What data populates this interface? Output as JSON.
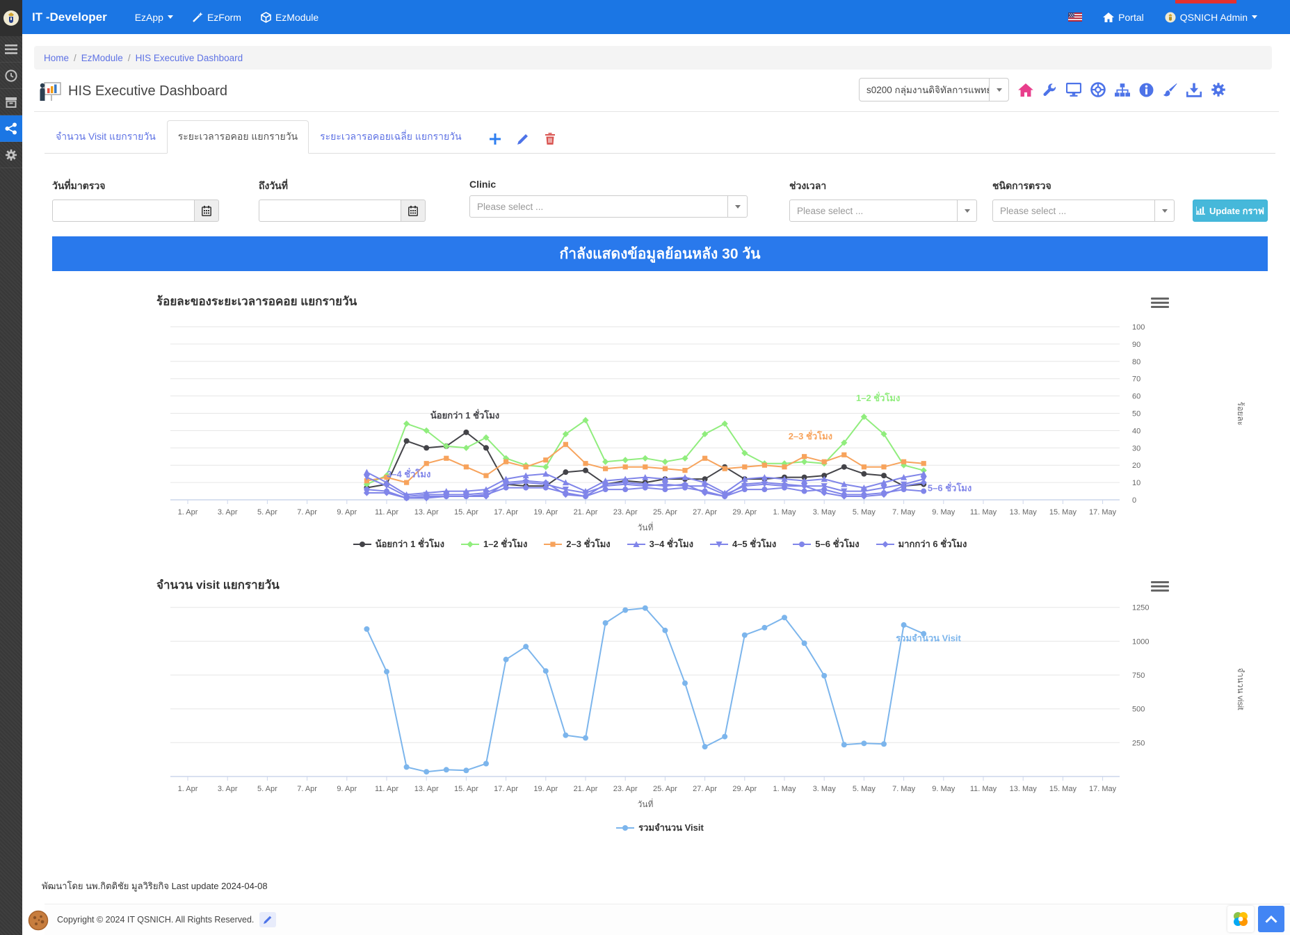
{
  "navbar": {
    "brand": "IT -Developer",
    "items": [
      {
        "label": "EzApp"
      },
      {
        "label": "EzForm"
      },
      {
        "label": "EzModule"
      }
    ],
    "portal_label": "Portal",
    "user_label": "QSNICH Admin"
  },
  "breadcrumb": {
    "items": [
      "Home",
      "EzModule",
      "HIS Executive Dashboard"
    ]
  },
  "page": {
    "title": "HIS Executive Dashboard",
    "unit_select_value": "s0200 กลุ่มงานดิจิทัลการแพทย์"
  },
  "tabs": {
    "tab1": "จำนวน Visit แยกรายวัน",
    "tab2": "ระยะเวลารอคอย แยกรายวัน",
    "tab3": "ระยะเวลารอคอยเฉลี่ย แยกรายวัน"
  },
  "filters": {
    "date_from_label": "วันที่มาตรวจ",
    "date_from_value": "",
    "date_to_label": "ถึงวันที่",
    "date_to_value": "",
    "clinic_label": "Clinic",
    "time_label": "ช่วงเวลา",
    "type_label": "ชนิดการตรวจ",
    "select_placeholder": "Please select ...",
    "update_button": "Update กราฟ"
  },
  "banner": {
    "text": "กำลังแสดงข้อมูลย้อนหลัง 30 วัน"
  },
  "footer": {
    "developer_note": "พัฒนาโดย นพ.กิตติชัย มูลวิริยกิจ Last update 2024-04-08",
    "copyright": "Copyright © 2024 IT QSNICH. All Rights Reserved."
  },
  "chart_data": [
    {
      "type": "line",
      "title": "ร้อยละของระยะเวลารอคอย แยกรายวัน",
      "xlabel": "วันที่",
      "ylabel": "ร้อยละ",
      "ylim": [
        0,
        100
      ],
      "yticks": [
        0,
        10,
        20,
        30,
        40,
        50,
        60,
        70,
        80,
        90,
        100
      ],
      "grid": true,
      "legend_position": "bottom",
      "x_axis_days": 47,
      "data_start_day": 9,
      "x_tick_labels": [
        "1. Apr",
        "3. Apr",
        "5. Apr",
        "7. Apr",
        "9. Apr",
        "11. Apr",
        "13. Apr",
        "15. Apr",
        "17. Apr",
        "19. Apr",
        "21. Apr",
        "23. Apr",
        "25. Apr",
        "27. Apr",
        "29. Apr",
        "1. May",
        "3. May",
        "5. May",
        "7. May",
        "9. May",
        "11. May",
        "13. May",
        "15. May",
        "17. May"
      ],
      "dates": [
        "10. Apr",
        "11. Apr",
        "12. Apr",
        "13. Apr",
        "14. Apr",
        "15. Apr",
        "16. Apr",
        "17. Apr",
        "18. Apr",
        "19. Apr",
        "20. Apr",
        "21. Apr",
        "22. Apr",
        "23. Apr",
        "24. Apr",
        "25. Apr",
        "26. Apr",
        "27. Apr",
        "28. Apr",
        "29. Apr",
        "30. Apr",
        "1. May",
        "2. May",
        "3. May",
        "4. May",
        "5. May",
        "6. May",
        "7. May",
        "8. May"
      ],
      "series": [
        {
          "name": "น้อยกว่า 1 ชั่วโมง",
          "color": "#434348",
          "marker": "circle",
          "values": [
            7,
            9,
            34,
            30,
            31,
            39,
            30,
            9,
            8,
            8,
            16,
            17,
            9,
            11,
            10,
            12,
            12,
            12,
            19,
            12,
            12,
            13,
            13,
            14,
            19,
            15,
            14,
            8,
            9
          ]
        },
        {
          "name": "1–2 ชั่วโมง",
          "color": "#90ed7d",
          "marker": "diamond",
          "values": [
            9,
            14,
            44,
            40,
            31,
            30,
            36,
            24,
            20,
            19,
            38,
            46,
            22,
            23,
            24,
            22,
            24,
            38,
            44,
            27,
            21,
            21,
            22,
            21,
            33,
            48,
            38,
            20,
            17
          ]
        },
        {
          "name": "2–3 ชั่วโมง",
          "color": "#f7a35c",
          "marker": "square",
          "values": [
            11,
            13,
            10,
            21,
            24,
            19,
            14,
            22,
            19,
            23,
            32,
            21,
            18,
            19,
            19,
            18,
            17,
            24,
            18,
            19,
            20,
            19,
            25,
            22,
            26,
            19,
            19,
            22,
            21
          ]
        },
        {
          "name": "3–4 ชั่วโมง",
          "color": "#8085e9",
          "marker": "triangle",
          "values": [
            16,
            10,
            3,
            4,
            5,
            5,
            6,
            12,
            14,
            15,
            10,
            5,
            11,
            12,
            13,
            12,
            13,
            10,
            4,
            12,
            13,
            12,
            11,
            12,
            9,
            7,
            10,
            13,
            15
          ]
        },
        {
          "name": "4–5 ชั่วโมง",
          "color": "#8085e9",
          "marker": "triangle-down",
          "values": [
            13,
            8,
            2,
            3,
            3,
            3,
            4,
            9,
            10,
            9,
            6,
            4,
            8,
            9,
            8,
            9,
            8,
            8,
            3,
            8,
            9,
            8,
            8,
            8,
            5,
            5,
            7,
            9,
            12
          ]
        },
        {
          "name": "5–6 ชั่วโมง",
          "color": "#8085e9",
          "marker": "circle",
          "values": [
            6,
            5,
            1,
            2,
            2,
            2,
            3,
            7,
            7,
            7,
            4,
            2,
            6,
            6,
            7,
            6,
            7,
            5,
            2,
            6,
            6,
            7,
            5,
            6,
            3,
            3,
            4,
            6,
            5
          ]
        },
        {
          "name": "มากกว่า 6 ชั่วโมง",
          "color": "#8085e9",
          "marker": "diamond",
          "values": [
            4,
            4,
            1,
            1,
            2,
            2,
            2,
            10,
            11,
            10,
            3,
            2,
            9,
            10,
            9,
            8,
            9,
            4,
            2,
            9,
            10,
            9,
            8,
            4,
            2,
            2,
            3,
            8,
            10
          ]
        }
      ],
      "annotations": [
        {
          "text": "น้อยกว่า 1 ชั่วโมง",
          "color": "#434348",
          "day": 12.2,
          "value": 47
        },
        {
          "text": "1–2 ชั่วโมง",
          "color": "#90ed7d",
          "day": 33.6,
          "value": 57
        },
        {
          "text": "2–3 ชั่วโมง",
          "color": "#f7a35c",
          "day": 30.2,
          "value": 35
        },
        {
          "text": "3–4 ชั่วโมง",
          "color": "#8085e9",
          "day": 10.0,
          "value": 13
        },
        {
          "text": "5–6 ชั่วโมง",
          "color": "#8085e9",
          "day": 37.2,
          "value": 5
        }
      ]
    },
    {
      "type": "line",
      "title": "จำนวน visit แยกรายวัน",
      "xlabel": "วันที่",
      "ylabel": "จำนวน visit",
      "ylim": [
        0,
        1300
      ],
      "yticks": [
        250,
        500,
        750,
        1000,
        1250
      ],
      "grid": true,
      "legend_position": "bottom",
      "x_axis_days": 47,
      "data_start_day": 9,
      "x_tick_labels": [
        "1. Apr",
        "3. Apr",
        "5. Apr",
        "7. Apr",
        "9. Apr",
        "11. Apr",
        "13. Apr",
        "15. Apr",
        "17. Apr",
        "19. Apr",
        "21. Apr",
        "23. Apr",
        "25. Apr",
        "27. Apr",
        "29. Apr",
        "1. May",
        "3. May",
        "5. May",
        "7. May",
        "9. May",
        "11. May",
        "13. May",
        "15. May",
        "17. May"
      ],
      "dates": [
        "10. Apr",
        "11. Apr",
        "12. Apr",
        "13. Apr",
        "14. Apr",
        "15. Apr",
        "16. Apr",
        "17. Apr",
        "18. Apr",
        "19. Apr",
        "20. Apr",
        "21. Apr",
        "22. Apr",
        "23. Apr",
        "24. Apr",
        "25. Apr",
        "26. Apr",
        "27. Apr",
        "28. Apr",
        "29. Apr",
        "30. Apr",
        "1. May",
        "2. May",
        "3. May",
        "4. May",
        "5. May",
        "6. May",
        "7. May",
        "8. May"
      ],
      "series": [
        {
          "name": "รวมจำนวน Visit",
          "color": "#7cb5ec",
          "marker": "circle",
          "values": [
            1090,
            775,
            70,
            35,
            50,
            45,
            95,
            865,
            960,
            780,
            305,
            285,
            1135,
            1230,
            1245,
            1080,
            690,
            220,
            295,
            1045,
            1100,
            1175,
            985,
            745,
            235,
            245,
            240,
            1120,
            1055
          ]
        }
      ],
      "annotations": [
        {
          "text": "รวมจำนวน Visit",
          "color": "#7cb5ec",
          "day": 35.6,
          "value": 1000
        }
      ]
    }
  ]
}
